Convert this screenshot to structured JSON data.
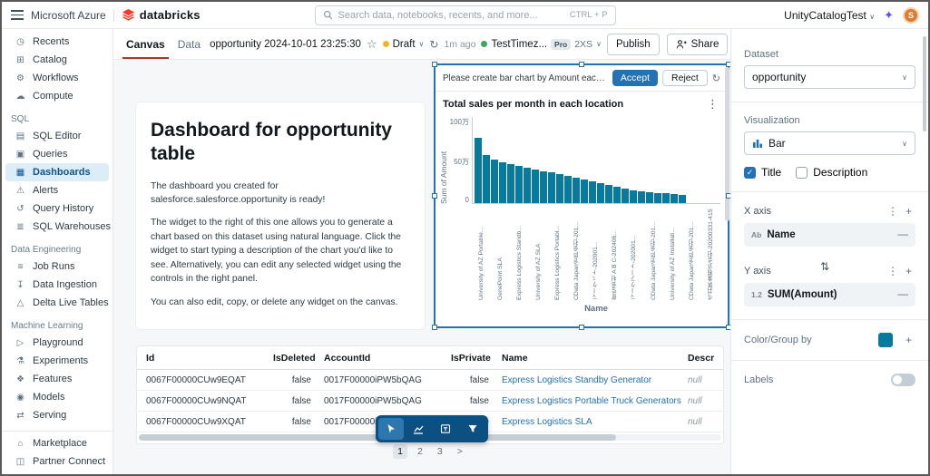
{
  "colors": {
    "accent": "#2272B4",
    "bar": "#077A9D",
    "draft_dot": "#F0B429",
    "live_dot": "#3BA65E",
    "avatar_bg": "#DB7C2F",
    "selection_border": "#2272B4"
  },
  "topbar": {
    "azure_label": "Microsoft Azure",
    "brand": "databricks",
    "search_placeholder": "Search data, notebooks, recents, and more...",
    "shortcut": "CTRL + P",
    "workspace": "UnityCatalogTest",
    "avatar": "S"
  },
  "sidebar": {
    "groups": [
      {
        "title": null,
        "items": [
          {
            "label": "Recents",
            "icon": "recents"
          },
          {
            "label": "Catalog",
            "icon": "catalog"
          },
          {
            "label": "Workflows",
            "icon": "workflows"
          },
          {
            "label": "Compute",
            "icon": "compute"
          }
        ]
      },
      {
        "title": "SQL",
        "items": [
          {
            "label": "SQL Editor",
            "icon": "sql-editor"
          },
          {
            "label": "Queries",
            "icon": "queries"
          },
          {
            "label": "Dashboards",
            "icon": "dashboards",
            "active": true
          },
          {
            "label": "Alerts",
            "icon": "alerts"
          },
          {
            "label": "Query History",
            "icon": "query-history"
          },
          {
            "label": "SQL Warehouses",
            "icon": "sql-warehouses"
          }
        ]
      },
      {
        "title": "Data Engineering",
        "items": [
          {
            "label": "Job Runs",
            "icon": "job-runs"
          },
          {
            "label": "Data Ingestion",
            "icon": "data-ingestion"
          },
          {
            "label": "Delta Live Tables",
            "icon": "delta-live-tables"
          }
        ]
      },
      {
        "title": "Machine Learning",
        "items": [
          {
            "label": "Playground",
            "icon": "playground"
          },
          {
            "label": "Experiments",
            "icon": "experiments"
          },
          {
            "label": "Features",
            "icon": "features"
          },
          {
            "label": "Models",
            "icon": "models"
          },
          {
            "label": "Serving",
            "icon": "serving"
          }
        ]
      }
    ],
    "bottom_items": [
      {
        "label": "Marketplace",
        "icon": "marketplace"
      },
      {
        "label": "Partner Connect",
        "icon": "partner-connect"
      }
    ]
  },
  "header": {
    "tabs": [
      {
        "label": "Canvas",
        "active": true
      },
      {
        "label": "Data"
      }
    ],
    "title": "opportunity 2024-10-01 23:25:30",
    "status": "Draft",
    "refreshed": "1m ago",
    "warehouse": "TestTimez...",
    "warehouse_tier": "Pro",
    "warehouse_size": "2XS",
    "publish_label": "Publish",
    "share_label": "Share"
  },
  "text_widget": {
    "heading": "Dashboard for opportunity table",
    "p1": "The dashboard you created for salesforce.salesforce.opportunity is ready!",
    "p2": "The widget to the right of this one allows you to generate a chart based on this dataset using natural language. Click the widget to start typing a description of the chart you'd like to see. Alternatively, you can edit any selected widget using the controls in the right panel.",
    "p3": "You can also edit, copy, or delete any widget on the canvas."
  },
  "suggestion": {
    "prompt": "Please create bar chart by Amount each Name",
    "accept": "Accept",
    "reject": "Reject"
  },
  "chart_data": {
    "type": "bar",
    "title": "Total sales per month in each location",
    "xlabel": "Name",
    "ylabel": "Sum of Amount",
    "y_ticks": [
      "100万",
      "50万",
      "0"
    ],
    "ylim": [
      0,
      100
    ],
    "unit": "万",
    "values": [
      75,
      55,
      50,
      47,
      45,
      43,
      41,
      39,
      37,
      35,
      33,
      31,
      29,
      27,
      25,
      23,
      21,
      19,
      17,
      15,
      14,
      13,
      12,
      11,
      10,
      9
    ],
    "x_tick_labels": [
      "University of AZ Portable...",
      "GenePoint SLA",
      "Express Logistics Standb...",
      "University of AZ SLA",
      "Express Logistics Portabl...",
      "CData Japan合同会社-201...",
      "マーケット-202001...",
      "航空会社 A B C-202406...",
      "マーケアート-202001...",
      "CData Japan合同会社-201...",
      "University of AZ Installati...",
      "CData Japan合同会社-201...",
      "今井興業株式会社-20200331-415"
    ]
  },
  "table": {
    "columns": [
      "Id",
      "IsDeleted",
      "AccountId",
      "IsPrivate",
      "Name",
      "Description"
    ],
    "rows": [
      [
        "0067F00000CUw9EQAT",
        "false",
        "0017F00000iPW5bQAG",
        "false",
        "Express Logistics Standby Generator",
        "null"
      ],
      [
        "0067F00000CUw9NQAT",
        "false",
        "0017F00000iPW5bQAG",
        "false",
        "Express Logistics Portable Truck Generators",
        "null"
      ],
      [
        "0067F00000CUw9XQAT",
        "false",
        "0017F00000iPW5bQAG",
        "false",
        "Express Logistics SLA",
        "null"
      ]
    ]
  },
  "pagination": {
    "pages": [
      "1",
      "2",
      "3"
    ],
    "active": "1",
    "next": ">"
  },
  "toolbar": {
    "tools": [
      "select",
      "chart",
      "text-widget",
      "filter"
    ],
    "active": "select"
  },
  "right_panel": {
    "dataset": {
      "label": "Dataset",
      "value": "opportunity"
    },
    "visualization": {
      "label": "Visualization",
      "value": "Bar"
    },
    "options": {
      "title": "Title",
      "description": "Description",
      "title_checked": true,
      "description_checked": false
    },
    "x_axis": {
      "label": "X axis",
      "field": "Name",
      "field_icon": "Ab"
    },
    "y_axis": {
      "label": "Y axis",
      "field": "SUM(Amount)",
      "field_icon": "1.2"
    },
    "color": {
      "label": "Color/Group by",
      "swatch": "#077A9D"
    },
    "labels": {
      "label": "Labels"
    }
  }
}
